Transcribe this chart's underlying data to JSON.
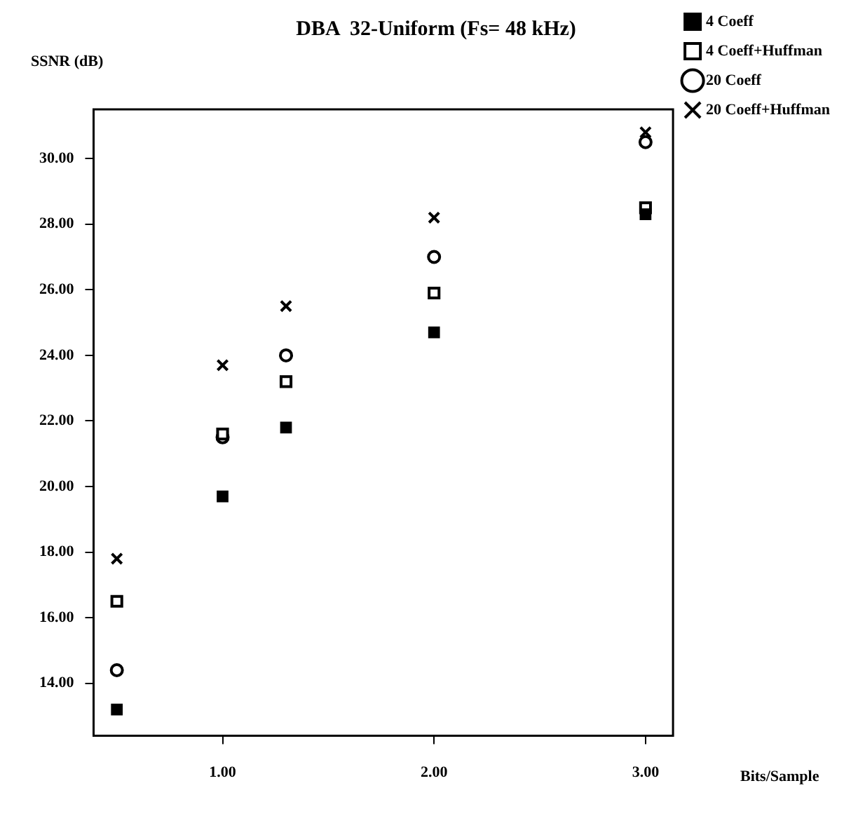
{
  "chart_data": {
    "type": "scatter",
    "title": "DBA  32-Uniform (Fs= 48 kHz)",
    "xlabel": "Bits/Sample",
    "ylabel": "SSNR (dB)",
    "x": [
      0.5,
      1,
      1.3,
      2,
      3
    ],
    "series": [
      {
        "name": "4 Coeff",
        "color": "#000000",
        "marker": "square_filled",
        "values": [
          13.2,
          19.7,
          21.8,
          24.7,
          28.3
        ]
      },
      {
        "name": "4 Coeff+Huffman",
        "color": "#000000",
        "marker": "square",
        "values": [
          16.5,
          21.6,
          23.2,
          25.9,
          28.5
        ]
      },
      {
        "name": "20 Coeff",
        "color": "#000000",
        "marker": "circle",
        "values": [
          14.4,
          21.5,
          24.0,
          27.0,
          30.5
        ]
      },
      {
        "name": "20 Coeff+Huffman",
        "color": "#000000",
        "marker": "cross",
        "values": [
          17.8,
          23.7,
          25.5,
          28.2,
          30.8
        ]
      }
    ],
    "xlim": [
      0.39,
      3.13
    ],
    "ylim": [
      12.4,
      31.5
    ],
    "xticks": [
      {
        "value": 1,
        "label": "1.00"
      },
      {
        "value": 2,
        "label": "2.00"
      },
      {
        "value": 3,
        "label": "3.00"
      }
    ],
    "yticks": [
      {
        "value": 14,
        "label": "14.00"
      },
      {
        "value": 16,
        "label": "16.00"
      },
      {
        "value": 18,
        "label": "18.00"
      },
      {
        "value": 20,
        "label": "20.00"
      },
      {
        "value": 22,
        "label": "22.00"
      },
      {
        "value": 24,
        "label": "24.00"
      },
      {
        "value": 26,
        "label": "26.00"
      },
      {
        "value": 28,
        "label": "28.00"
      },
      {
        "value": 30,
        "label": "30.00"
      }
    ],
    "grid": false,
    "legend": "top right"
  }
}
